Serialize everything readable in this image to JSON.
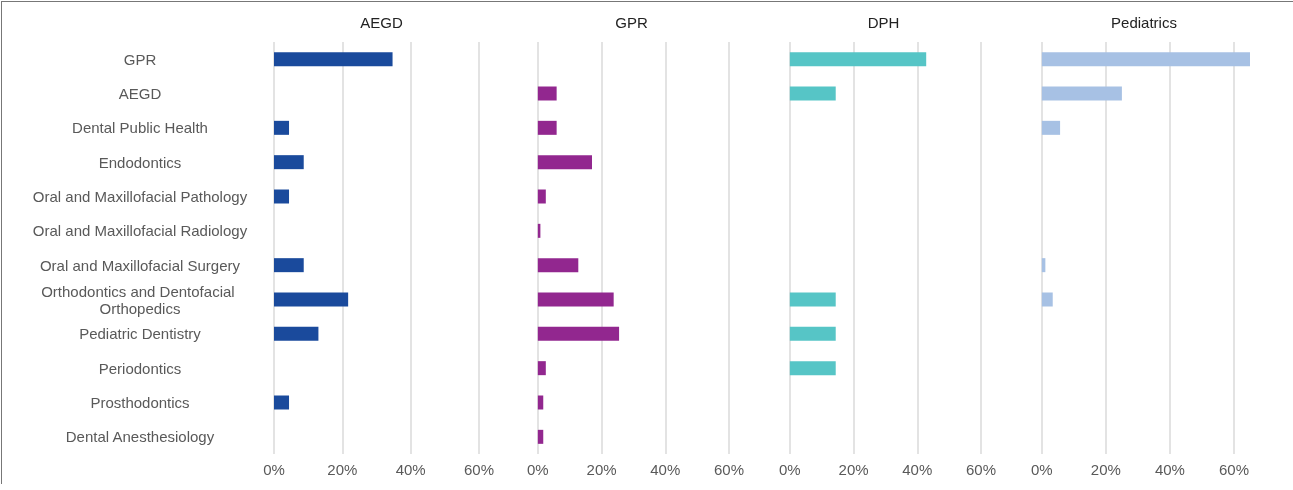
{
  "chart_data": [
    {
      "type": "bar",
      "orientation": "horizontal",
      "title": "AEGD",
      "categories": [
        "GPR",
        "AEGD",
        "Dental Public Health",
        "Endodontics",
        "Oral and Maxillofacial Pathology",
        "Oral and Maxillofacial Radiology",
        "Oral and Maxillofacial Surgery",
        "Orthodontics and Dentofacial Orthopedics",
        "Pediatric Dentistry",
        "Periodontics",
        "Prosthodontics",
        "Dental Anesthesiology"
      ],
      "values": [
        34.7,
        null,
        4.4,
        8.7,
        4.4,
        null,
        8.7,
        21.7,
        13,
        null,
        4.4,
        null
      ],
      "color": "#1a4a9c",
      "xlim": [
        0,
        60
      ],
      "xticks": [
        {
          "value": 0,
          "label": "0%"
        },
        {
          "value": 20,
          "label": "20%"
        },
        {
          "value": 40,
          "label": "40%"
        },
        {
          "value": 60,
          "label": "60%"
        }
      ],
      "grid": "x"
    },
    {
      "type": "bar",
      "orientation": "horizontal",
      "title": "GPR",
      "categories": [
        null,
        null,
        null,
        null,
        null,
        null,
        null,
        null,
        null,
        null,
        null,
        null
      ],
      "values": [
        null,
        5.9,
        5.9,
        17,
        2.5,
        0.8,
        12.7,
        23.8,
        25.5,
        2.5,
        1.7,
        1.7
      ],
      "color": "#92278f",
      "xlim": [
        0,
        60
      ],
      "xticks": [
        {
          "value": 0,
          "label": "0%"
        },
        {
          "value": 20,
          "label": "20%"
        },
        {
          "value": 40,
          "label": "40%"
        },
        {
          "value": 60,
          "label": "60%"
        }
      ],
      "grid": "x",
      "tick_labels": "x"
    },
    {
      "type": "bar",
      "orientation": "horizontal",
      "title": "DPH",
      "categories": [
        null,
        null,
        null,
        null,
        null,
        null,
        null,
        null,
        null,
        null,
        null,
        null
      ],
      "values": [
        42.8,
        14.4,
        null,
        null,
        null,
        null,
        null,
        14.4,
        14.4,
        14.4,
        null,
        null
      ],
      "color": "#56c5c6",
      "xlim": [
        0,
        60
      ],
      "xticks": [
        {
          "value": 0,
          "label": "0%"
        },
        {
          "value": 20,
          "label": "20%"
        },
        {
          "value": 40,
          "label": "40%"
        },
        {
          "value": 60,
          "label": "60%"
        }
      ],
      "grid": "x",
      "tick_labels": "x"
    },
    {
      "type": "bar",
      "orientation": "horizontal",
      "title": "Pediatrics",
      "categories": [
        null,
        null,
        null,
        null,
        null,
        null,
        null,
        null,
        null,
        null,
        null,
        null
      ],
      "values": [
        65,
        25,
        5.7,
        null,
        null,
        null,
        1.1,
        3.4,
        null,
        null,
        null,
        null
      ],
      "color": "#a7c1e4",
      "xlim": [
        0,
        65
      ],
      "xticks": [
        {
          "value": 0,
          "label": "0%"
        },
        {
          "value": 20,
          "label": "20%"
        },
        {
          "value": 40,
          "label": "40%"
        },
        {
          "value": 60,
          "label": "60%"
        }
      ],
      "grid": "x",
      "tick_labels": "x"
    }
  ]
}
